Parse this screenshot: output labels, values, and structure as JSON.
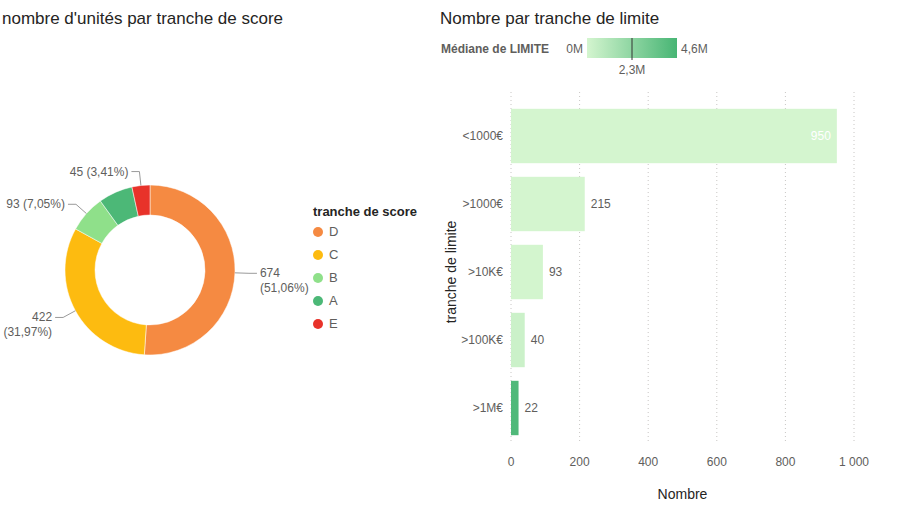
{
  "chart_data": [
    {
      "type": "donut",
      "title": "nombre d'unités par tranche de score",
      "legend_title": "tranche de score",
      "legend": "right",
      "categories": [
        "D",
        "C",
        "B",
        "A",
        "E"
      ],
      "values": [
        674,
        422,
        93,
        86,
        45
      ],
      "value_labels": [
        "674 (51,06%)",
        "422 (31,97%)",
        "93 (7,05%)",
        null,
        "45 (3,41%)"
      ],
      "colors": [
        "#f58a42",
        "#fdbb10",
        "#8fe08a",
        "#4cb877",
        "#e8322a"
      ],
      "data_labels": true
    },
    {
      "type": "bar",
      "orientation": "horizontal",
      "title": "Nombre par tranche de limite",
      "x_label": "Nombre",
      "y_label": "tranche de limite",
      "categories": [
        "<1000€",
        ">1000€",
        ">10K€",
        ">100K€",
        ">1M€"
      ],
      "values": [
        950,
        215,
        93,
        40,
        22
      ],
      "color_values": [
        0.0005,
        0.003,
        0.03,
        0.3,
        4.3
      ],
      "colorbar": {
        "label": "Médiane de LIMITE",
        "range": [
          0,
          4.6
        ],
        "ticks": [
          {
            "value": 0,
            "label": "0M"
          },
          {
            "value": 2.3,
            "label": "2,3M"
          },
          {
            "value": 4.6,
            "label": "4,6M"
          }
        ],
        "colors": [
          "#d4f5cf",
          "#47b574"
        ]
      },
      "xlim": [
        0,
        1000
      ],
      "xticks": [
        0,
        200,
        400,
        600,
        800,
        {
          "value": 1000,
          "label": "1 000"
        }
      ],
      "grid": true,
      "data_labels": true
    }
  ]
}
